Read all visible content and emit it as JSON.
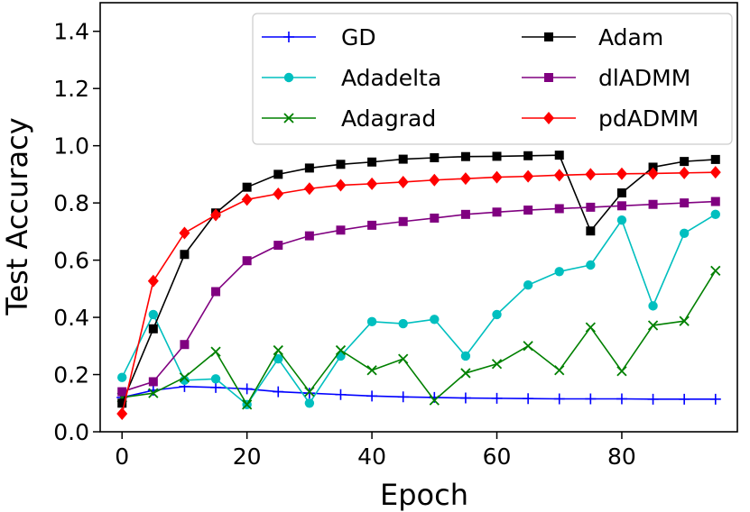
{
  "chart_data": {
    "type": "line",
    "title": "",
    "xlabel": "Epoch",
    "ylabel": "Test Accuracy",
    "xlim": [
      -3.5,
      98.5
    ],
    "ylim": [
      0.0,
      1.5
    ],
    "xticks": [
      0,
      20,
      40,
      60,
      80
    ],
    "yticks": [
      0.0,
      0.2,
      0.4,
      0.6,
      0.8,
      1.0,
      1.2,
      1.4
    ],
    "xtick_labels": [
      "0",
      "20",
      "40",
      "60",
      "80"
    ],
    "ytick_labels": [
      "0.0",
      "0.2",
      "0.4",
      "0.6",
      "0.8",
      "1.0",
      "1.2",
      "1.4"
    ],
    "grid": false,
    "legend_position": "top-right",
    "x": [
      0,
      5,
      10,
      15,
      20,
      25,
      30,
      35,
      40,
      45,
      50,
      55,
      60,
      65,
      70,
      75,
      80,
      85,
      90,
      95
    ],
    "series": [
      {
        "name": "GD",
        "color": "#0000ff",
        "marker": "plus",
        "values": [
          0.12,
          0.145,
          0.158,
          0.155,
          0.15,
          0.14,
          0.135,
          0.13,
          0.125,
          0.122,
          0.12,
          0.118,
          0.117,
          0.116,
          0.115,
          0.115,
          0.115,
          0.114,
          0.114,
          0.114
        ]
      },
      {
        "name": "Adadelta",
        "color": "#00bfbf",
        "marker": "circle",
        "values": [
          0.19,
          0.41,
          0.18,
          0.185,
          0.095,
          0.255,
          0.1,
          0.265,
          0.385,
          0.378,
          0.393,
          0.265,
          0.41,
          0.513,
          0.56,
          0.583,
          0.74,
          0.44,
          0.694,
          0.76
        ]
      },
      {
        "name": "Adagrad",
        "color": "#008000",
        "marker": "x",
        "values": [
          0.12,
          0.135,
          0.19,
          0.28,
          0.095,
          0.285,
          0.14,
          0.285,
          0.215,
          0.255,
          0.11,
          0.205,
          0.237,
          0.3,
          0.215,
          0.365,
          0.212,
          0.372,
          0.387,
          0.563
        ]
      },
      {
        "name": "Adam",
        "color": "#000000",
        "marker": "square",
        "values": [
          0.1,
          0.36,
          0.62,
          0.765,
          0.855,
          0.9,
          0.922,
          0.935,
          0.943,
          0.953,
          0.958,
          0.962,
          0.963,
          0.965,
          0.967,
          0.702,
          0.835,
          0.925,
          0.945,
          0.952
        ]
      },
      {
        "name": "dlADMM",
        "color": "#800080",
        "marker": "square",
        "values": [
          0.14,
          0.175,
          0.305,
          0.49,
          0.598,
          0.652,
          0.685,
          0.705,
          0.722,
          0.735,
          0.747,
          0.76,
          0.768,
          0.775,
          0.78,
          0.785,
          0.79,
          0.795,
          0.8,
          0.805
        ]
      },
      {
        "name": "pdADMM",
        "color": "#ff0000",
        "marker": "diamond",
        "values": [
          0.063,
          0.527,
          0.695,
          0.758,
          0.812,
          0.832,
          0.85,
          0.862,
          0.867,
          0.873,
          0.88,
          0.885,
          0.89,
          0.893,
          0.897,
          0.9,
          0.902,
          0.903,
          0.905,
          0.907
        ]
      }
    ]
  }
}
